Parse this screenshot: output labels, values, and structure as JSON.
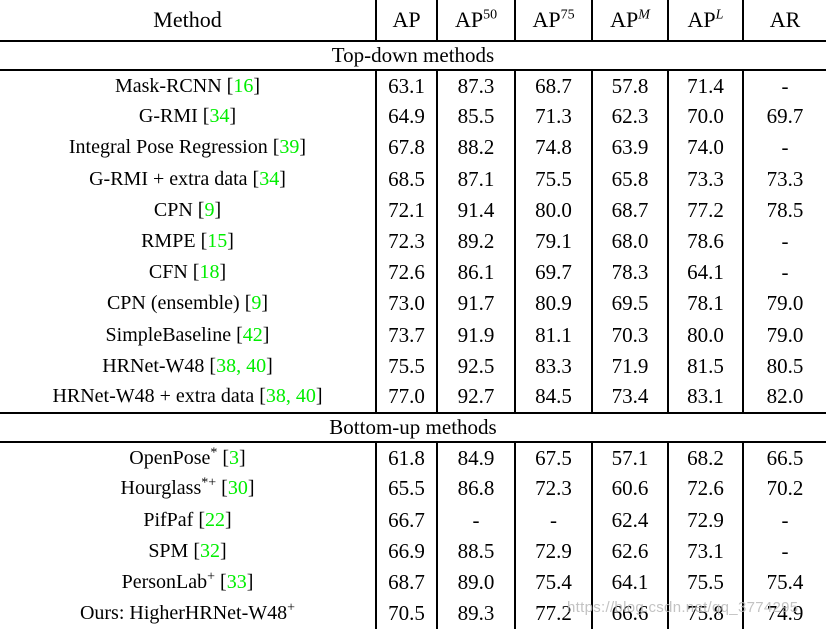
{
  "colors": {
    "text": "#000000",
    "citation_green": "#00ee00",
    "rule": "#000000",
    "watermark_gray": "#b9b9b9"
  },
  "watermark": {
    "text": "https://blog.csdn.net/qq_3774295"
  },
  "table": {
    "header": {
      "method_label": "Method",
      "metrics": [
        {
          "base": "AP",
          "sup": "",
          "sup_italic": false
        },
        {
          "base": "AP",
          "sup": "50",
          "sup_italic": false
        },
        {
          "base": "AP",
          "sup": "75",
          "sup_italic": false
        },
        {
          "base": "AP",
          "sup": "M",
          "sup_italic": true
        },
        {
          "base": "AP",
          "sup": "L",
          "sup_italic": true
        },
        {
          "base": "AR",
          "sup": "",
          "sup_italic": false
        }
      ]
    },
    "sections": [
      {
        "label": "Top-down methods",
        "rows": [
          {
            "name": "Mask-RCNN",
            "name_sup": "",
            "cite": "16",
            "values": [
              "63.1",
              "87.3",
              "68.7",
              "57.8",
              "71.4",
              "-"
            ]
          },
          {
            "name": "G-RMI",
            "name_sup": "",
            "cite": "34",
            "values": [
              "64.9",
              "85.5",
              "71.3",
              "62.3",
              "70.0",
              "69.7"
            ]
          },
          {
            "name": "Integral Pose Regression",
            "name_sup": "",
            "cite": "39",
            "values": [
              "67.8",
              "88.2",
              "74.8",
              "63.9",
              "74.0",
              "-"
            ]
          },
          {
            "name": "G-RMI + extra data",
            "name_sup": "",
            "cite": "34",
            "values": [
              "68.5",
              "87.1",
              "75.5",
              "65.8",
              "73.3",
              "73.3"
            ]
          },
          {
            "name": "CPN",
            "name_sup": "",
            "cite": "9",
            "values": [
              "72.1",
              "91.4",
              "80.0",
              "68.7",
              "77.2",
              "78.5"
            ]
          },
          {
            "name": "RMPE",
            "name_sup": "",
            "cite": "15",
            "values": [
              "72.3",
              "89.2",
              "79.1",
              "68.0",
              "78.6",
              "-"
            ]
          },
          {
            "name": "CFN",
            "name_sup": "",
            "cite": "18",
            "values": [
              "72.6",
              "86.1",
              "69.7",
              "78.3",
              "64.1",
              "-"
            ]
          },
          {
            "name": "CPN (ensemble)",
            "name_sup": "",
            "cite": "9",
            "values": [
              "73.0",
              "91.7",
              "80.9",
              "69.5",
              "78.1",
              "79.0"
            ]
          },
          {
            "name": "SimpleBaseline",
            "name_sup": "",
            "cite": "42",
            "values": [
              "73.7",
              "91.9",
              "81.1",
              "70.3",
              "80.0",
              "79.0"
            ]
          },
          {
            "name": "HRNet-W48",
            "name_sup": "",
            "cite": "38, 40",
            "values": [
              "75.5",
              "92.5",
              "83.3",
              "71.9",
              "81.5",
              "80.5"
            ]
          },
          {
            "name": "HRNet-W48 + extra data",
            "name_sup": "",
            "cite": "38, 40",
            "values": [
              "77.0",
              "92.7",
              "84.5",
              "73.4",
              "83.1",
              "82.0"
            ]
          }
        ]
      },
      {
        "label": "Bottom-up methods",
        "rows": [
          {
            "name": "OpenPose",
            "name_sup": "*",
            "cite": "3",
            "values": [
              "61.8",
              "84.9",
              "67.5",
              "57.1",
              "68.2",
              "66.5"
            ]
          },
          {
            "name": "Hourglass",
            "name_sup": "*+",
            "cite": "30",
            "values": [
              "65.5",
              "86.8",
              "72.3",
              "60.6",
              "72.6",
              "70.2"
            ]
          },
          {
            "name": "PifPaf",
            "name_sup": "",
            "cite": "22",
            "values": [
              "66.7",
              "-",
              "-",
              "62.4",
              "72.9",
              "-"
            ]
          },
          {
            "name": "SPM",
            "name_sup": "",
            "cite": "32",
            "values": [
              "66.9",
              "88.5",
              "72.9",
              "62.6",
              "73.1",
              "-"
            ]
          },
          {
            "name": "PersonLab",
            "name_sup": "+",
            "cite": "33",
            "values": [
              "68.7",
              "89.0",
              "75.4",
              "64.1",
              "75.5",
              "75.4"
            ]
          },
          {
            "name": "Ours: HigherHRNet-W48",
            "name_sup": "+",
            "cite": "",
            "values": [
              "70.5",
              "89.3",
              "77.2",
              "66.6",
              "75.8",
              "74.9"
            ]
          }
        ]
      }
    ]
  }
}
